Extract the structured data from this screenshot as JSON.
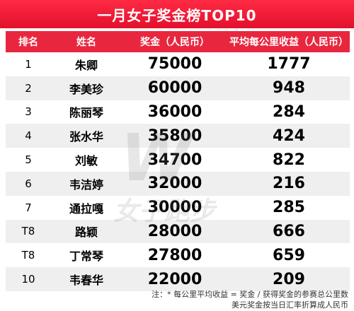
{
  "title": "一月女子奖金榜TOP10",
  "header": {
    "rank": "排名",
    "name": "姓名",
    "prize": "奖金（人民币）",
    "avg": "平均每公里收益（人民币）"
  },
  "rows": [
    {
      "rank": "1",
      "name": "朱卿",
      "prize": "75000",
      "avg": "1777"
    },
    {
      "rank": "2",
      "name": "李美珍",
      "prize": "60000",
      "avg": "948"
    },
    {
      "rank": "3",
      "name": "陈丽琴",
      "prize": "36000",
      "avg": "284"
    },
    {
      "rank": "4",
      "name": "张水华",
      "prize": "35800",
      "avg": "424"
    },
    {
      "rank": "5",
      "name": "刘敏",
      "prize": "34700",
      "avg": "822"
    },
    {
      "rank": "6",
      "name": "韦洁婷",
      "prize": "32000",
      "avg": "216"
    },
    {
      "rank": "7",
      "name": "通拉嘎",
      "prize": "30000",
      "avg": "285"
    },
    {
      "rank": "T8",
      "name": "路颖",
      "prize": "28000",
      "avg": "666"
    },
    {
      "rank": "T8",
      "name": "丁常琴",
      "prize": "27800",
      "avg": "659"
    },
    {
      "rank": "10",
      "name": "韦春华",
      "prize": "22000",
      "avg": "209"
    }
  ],
  "watermark": {
    "logo": "W",
    "text": "女子跑步"
  },
  "notes": {
    "line1": "注：* 每公里平均收益 = 奖金 / 获得奖金的参赛总公里数",
    "line2": "美元奖金按当日汇率折算成人民币"
  },
  "colors": {
    "accent": "#e8273f",
    "stripe": "#efefef"
  }
}
